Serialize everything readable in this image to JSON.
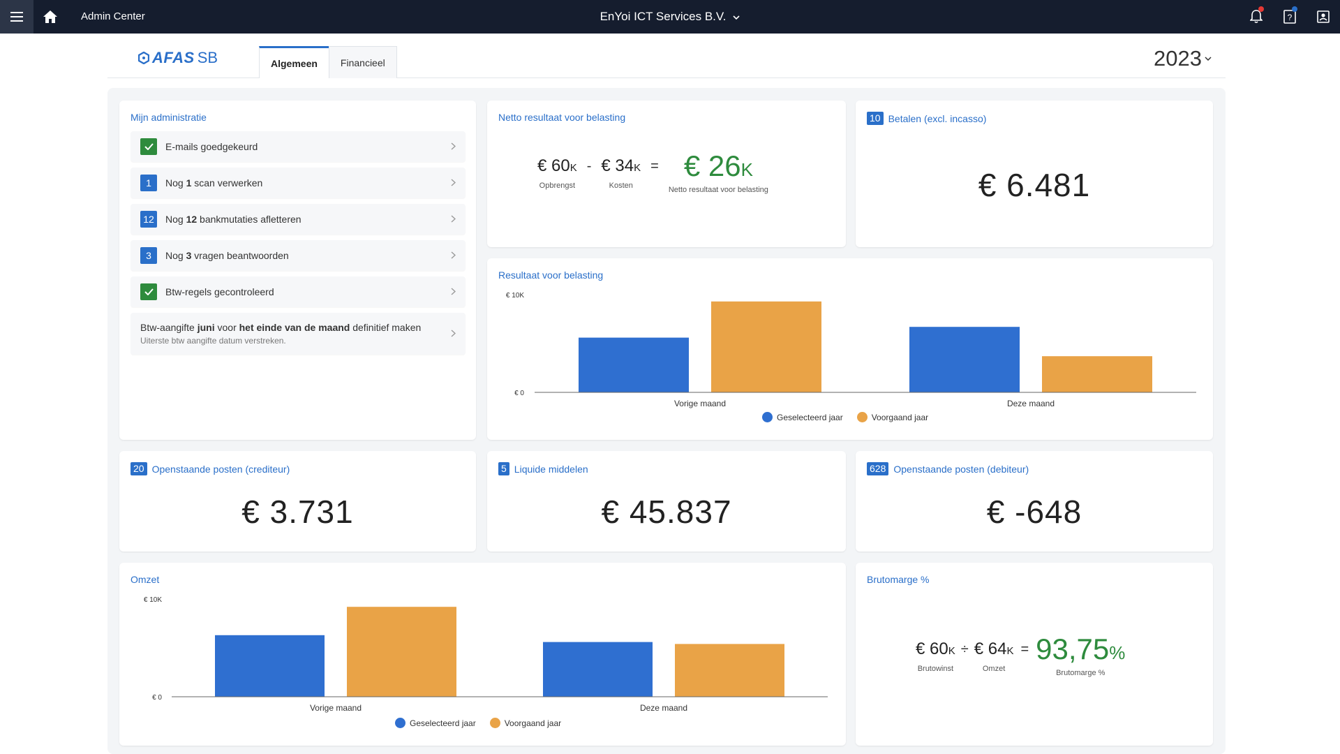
{
  "topbar": {
    "menu_icon": "hamburger-menu-icon",
    "home_icon": "home-icon",
    "admin_center": "Admin Center",
    "company": "EnYoi ICT Services B.V.",
    "company_dropdown_icon": "chevron-down-icon",
    "icons": [
      "bell-icon",
      "help-icon",
      "user-icon"
    ],
    "colors": {
      "bar": "#151d2e",
      "notification_dot": "#e53935",
      "help_dot": "#2a6fc9"
    }
  },
  "header": {
    "logo_afas": "AFAS",
    "logo_sb": "SB",
    "tabs": [
      {
        "label": "Algemeen",
        "active": true
      },
      {
        "label": "Financieel",
        "active": false
      }
    ],
    "year": "2023"
  },
  "admin": {
    "title": "Mijn administratie",
    "items": [
      {
        "type": "check",
        "pre": "E-mails goedgekeurd",
        "bold": "",
        "post": ""
      },
      {
        "type": "count",
        "count": "1",
        "pre": "Nog ",
        "bold": "1",
        "post": " scan verwerken"
      },
      {
        "type": "count",
        "count": "12",
        "pre": "Nog ",
        "bold": "12",
        "post": " bankmutaties afletteren"
      },
      {
        "type": "count",
        "count": "3",
        "pre": "Nog ",
        "bold": "3",
        "post": " vragen beantwoorden"
      },
      {
        "type": "check",
        "pre": "Btw-regels gecontroleerd",
        "bold": "",
        "post": ""
      }
    ],
    "btw": {
      "t1": "Btw-aangifte ",
      "b1": "juni",
      "t2": " voor ",
      "b2": "het einde van de maand",
      "t3": " definitief maken",
      "sub": "Uiterste btw aangifte datum verstreken."
    }
  },
  "netto": {
    "title": "Netto resultaat voor belasting",
    "opbrengst_value": "€ 60",
    "opbrengst_unit": "K",
    "opbrengst_label": "Opbrengst",
    "minus": "-",
    "kosten_value": "€ 34",
    "kosten_unit": "K",
    "kosten_label": "Kosten",
    "equals": "=",
    "result_value": "€ 26",
    "result_unit": "K",
    "result_label": "Netto resultaat voor belasting"
  },
  "betalen": {
    "badge": "10",
    "title": "Betalen (excl. incasso)",
    "value": "€ 6.481"
  },
  "crediteur": {
    "badge": "20",
    "title": "Openstaande posten (crediteur)",
    "value": "€ 3.731"
  },
  "liquide": {
    "badge": "5",
    "title": "Liquide middelen",
    "value": "€ 45.837"
  },
  "debiteur": {
    "badge": "628",
    "title": "Openstaande posten (debiteur)",
    "value": "€ -648"
  },
  "brutomarge": {
    "title": "Brutomarge %",
    "brutowinst_value": "€ 60",
    "brutowinst_unit": "K",
    "brutowinst_label": "Brutowinst",
    "divide": "÷",
    "omzet_value": "€ 64",
    "omzet_unit": "K",
    "omzet_label": "Omzet",
    "equals": "=",
    "result_value": "93,75",
    "result_unit": "%",
    "result_label": "Brutomarge %"
  },
  "chart_data": [
    {
      "type": "bar",
      "title": "Resultaat voor belasting",
      "categories": [
        "Vorige maand",
        "Deze maand"
      ],
      "series": [
        {
          "name": "Geselecteerd jaar",
          "color": "#2f6fd0",
          "values": [
            5600,
            6700
          ]
        },
        {
          "name": "Voorgaand jaar",
          "color": "#e9a347",
          "values": [
            9300,
            3700
          ]
        }
      ],
      "ylim": [
        0,
        10000
      ],
      "yticks": [
        "€ 10K",
        "€ 0"
      ],
      "legend": "bottom"
    },
    {
      "type": "bar",
      "title": "Omzet",
      "categories": [
        "Vorige maand",
        "Deze maand"
      ],
      "series": [
        {
          "name": "Geselecteerd jaar",
          "color": "#2f6fd0",
          "values": [
            6300,
            5600
          ]
        },
        {
          "name": "Voorgaand jaar",
          "color": "#e9a347",
          "values": [
            9200,
            5400
          ]
        }
      ],
      "ylim": [
        0,
        10000
      ],
      "yticks": [
        "€ 10K",
        "€ 0"
      ],
      "legend": "bottom"
    }
  ]
}
